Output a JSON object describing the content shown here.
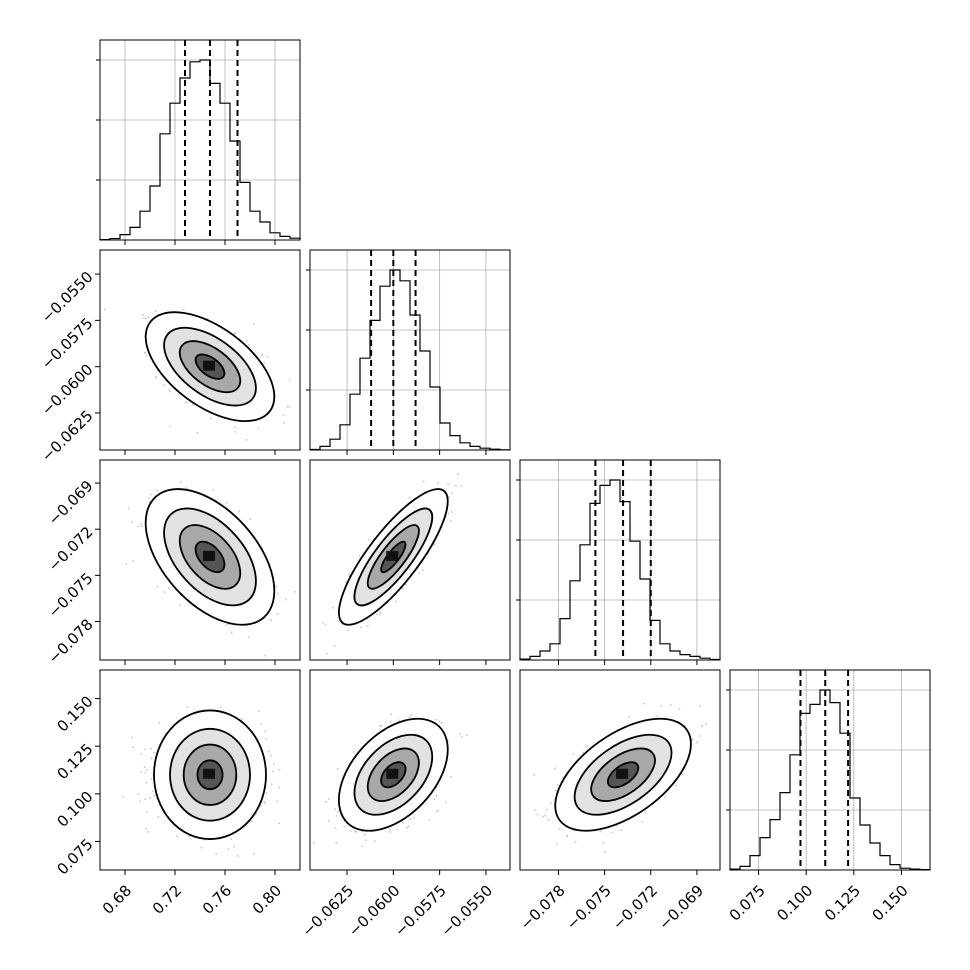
{
  "chart_data": {
    "type": "corner",
    "description_hidden": false,
    "parameters": [
      {
        "range": [
          0.66,
          0.82
        ],
        "ticks": [
          0.68,
          0.72,
          0.76,
          0.8
        ],
        "tick_labels": [
          "0.68",
          "0.72",
          "0.76",
          "0.80"
        ],
        "mean": 0.748,
        "quantiles": [
          0.728,
          0.748,
          0.77
        ],
        "sd": 0.021
      },
      {
        "range": [
          -0.0645,
          -0.0537
        ],
        "ticks": [
          -0.0625,
          -0.06,
          -0.0575,
          -0.055
        ],
        "tick_labels": [
          "−0.0625",
          "−0.0600",
          "−0.0575",
          "−0.0550"
        ],
        "mean": -0.06,
        "quantiles": [
          -0.0612,
          -0.06,
          -0.0588
        ],
        "sd": 0.0012
      },
      {
        "range": [
          -0.0805,
          -0.0675
        ],
        "ticks": [
          -0.078,
          -0.075,
          -0.072,
          -0.069
        ],
        "tick_labels": [
          "−0.078",
          "−0.075",
          "−0.072",
          "−0.069"
        ],
        "mean": -0.0738,
        "quantiles": [
          -0.0756,
          -0.0738,
          -0.072
        ],
        "sd": 0.0018
      },
      {
        "range": [
          0.06,
          0.165
        ],
        "ticks": [
          0.075,
          0.1,
          0.125,
          0.15
        ],
        "tick_labels": [
          "0.075",
          "0.100",
          "0.125",
          "0.150"
        ],
        "mean": 0.11,
        "quantiles": [
          0.097,
          0.11,
          0.122
        ],
        "sd": 0.012
      }
    ],
    "histograms": [
      [
        0.002,
        0.008,
        0.03,
        0.07,
        0.16,
        0.3,
        0.59,
        0.76,
        0.9,
        0.99,
        1.0,
        0.87,
        0.76,
        0.55,
        0.32,
        0.16,
        0.1,
        0.04,
        0.02,
        0.01
      ],
      [
        0.003,
        0.02,
        0.06,
        0.14,
        0.31,
        0.51,
        0.72,
        0.91,
        1.0,
        0.94,
        0.75,
        0.55,
        0.35,
        0.15,
        0.08,
        0.04,
        0.02,
        0.01,
        0.004,
        0.001
      ],
      [
        0.005,
        0.02,
        0.05,
        0.09,
        0.23,
        0.44,
        0.64,
        0.87,
        0.97,
        1.0,
        0.88,
        0.66,
        0.45,
        0.22,
        0.09,
        0.05,
        0.03,
        0.02,
        0.01,
        0.003
      ],
      [
        0.005,
        0.02,
        0.08,
        0.18,
        0.28,
        0.43,
        0.64,
        0.87,
        0.92,
        1.0,
        0.93,
        0.76,
        0.4,
        0.25,
        0.15,
        0.08,
        0.03,
        0.01,
        0.005,
        0.002
      ]
    ],
    "correlations": [
      {
        "row": 1,
        "col": 0,
        "rho": -0.55
      },
      {
        "row": 2,
        "col": 0,
        "rho": -0.5
      },
      {
        "row": 2,
        "col": 1,
        "rho": 0.82
      },
      {
        "row": 3,
        "col": 0,
        "rho": 0.0
      },
      {
        "row": 3,
        "col": 1,
        "rho": 0.45
      },
      {
        "row": 3,
        "col": 2,
        "rho": 0.55
      }
    ],
    "grid": true
  }
}
